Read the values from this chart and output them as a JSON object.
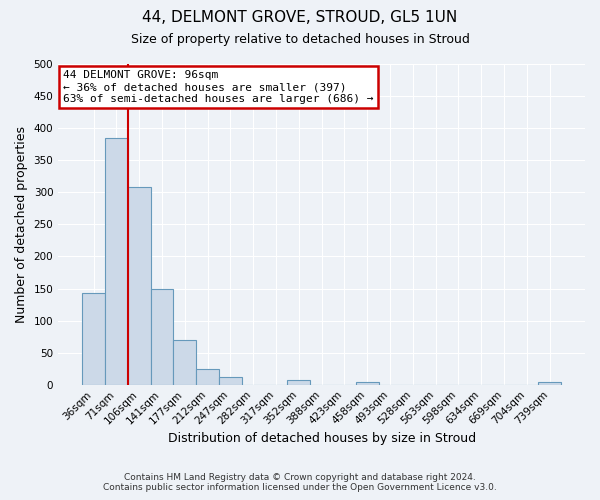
{
  "title": "44, DELMONT GROVE, STROUD, GL5 1UN",
  "subtitle": "Size of property relative to detached houses in Stroud",
  "xlabel": "Distribution of detached houses by size in Stroud",
  "ylabel": "Number of detached properties",
  "bar_labels": [
    "36sqm",
    "71sqm",
    "106sqm",
    "141sqm",
    "177sqm",
    "212sqm",
    "247sqm",
    "282sqm",
    "317sqm",
    "352sqm",
    "388sqm",
    "423sqm",
    "458sqm",
    "493sqm",
    "528sqm",
    "563sqm",
    "598sqm",
    "634sqm",
    "669sqm",
    "704sqm",
    "739sqm"
  ],
  "bar_heights": [
    143,
    385,
    308,
    149,
    70,
    25,
    12,
    0,
    0,
    8,
    0,
    0,
    5,
    0,
    0,
    0,
    0,
    0,
    0,
    0,
    5
  ],
  "bar_color": "#ccd9e8",
  "bar_edgecolor": "#6699bb",
  "vline_x_index": 2,
  "vline_color": "#cc0000",
  "annotation_title": "44 DELMONT GROVE: 96sqm",
  "annotation_line1": "← 36% of detached houses are smaller (397)",
  "annotation_line2": "63% of semi-detached houses are larger (686) →",
  "annotation_box_color": "#cc0000",
  "ylim": [
    0,
    500
  ],
  "yticks": [
    0,
    50,
    100,
    150,
    200,
    250,
    300,
    350,
    400,
    450,
    500
  ],
  "footer_line1": "Contains HM Land Registry data © Crown copyright and database right 2024.",
  "footer_line2": "Contains public sector information licensed under the Open Government Licence v3.0.",
  "background_color": "#eef2f7",
  "plot_background": "#eef2f7",
  "grid_color": "#ffffff",
  "title_fontsize": 11,
  "subtitle_fontsize": 9,
  "axis_label_fontsize": 9,
  "tick_fontsize": 7.5,
  "footer_fontsize": 6.5,
  "annot_fontsize": 8
}
